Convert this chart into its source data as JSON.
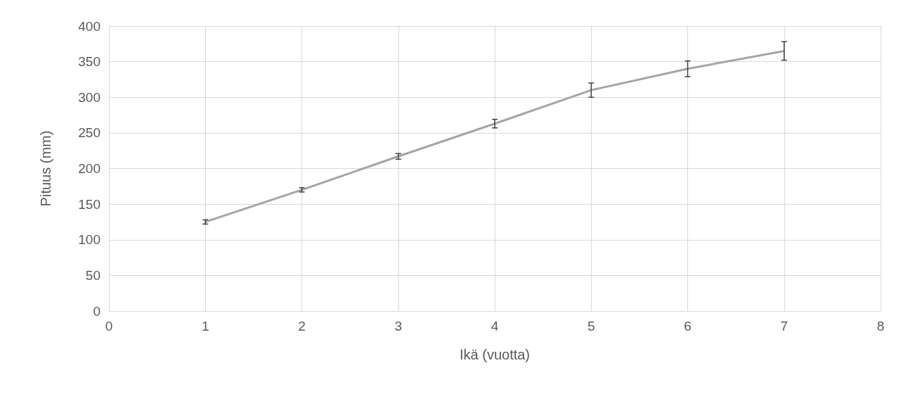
{
  "chart_data": {
    "type": "line",
    "xlabel": "Ikä (vuotta)",
    "ylabel": "Pituus (mm)",
    "x": [
      1,
      2,
      3,
      4,
      5,
      6,
      7
    ],
    "series": [
      {
        "color": "#a5a5a5",
        "values": [
          125,
          170,
          217,
          263,
          310,
          340,
          365
        ],
        "errors": [
          3,
          3,
          4,
          6,
          10,
          11,
          13
        ]
      }
    ],
    "xlim": [
      0,
      8
    ],
    "xticks": [
      0,
      1,
      2,
      3,
      4,
      5,
      6,
      7,
      8
    ],
    "ylim": [
      0,
      400
    ],
    "yticks": [
      0,
      50,
      100,
      150,
      200,
      250,
      300,
      350,
      400
    ],
    "grid": true,
    "marker": "none",
    "line_style": "solid"
  }
}
